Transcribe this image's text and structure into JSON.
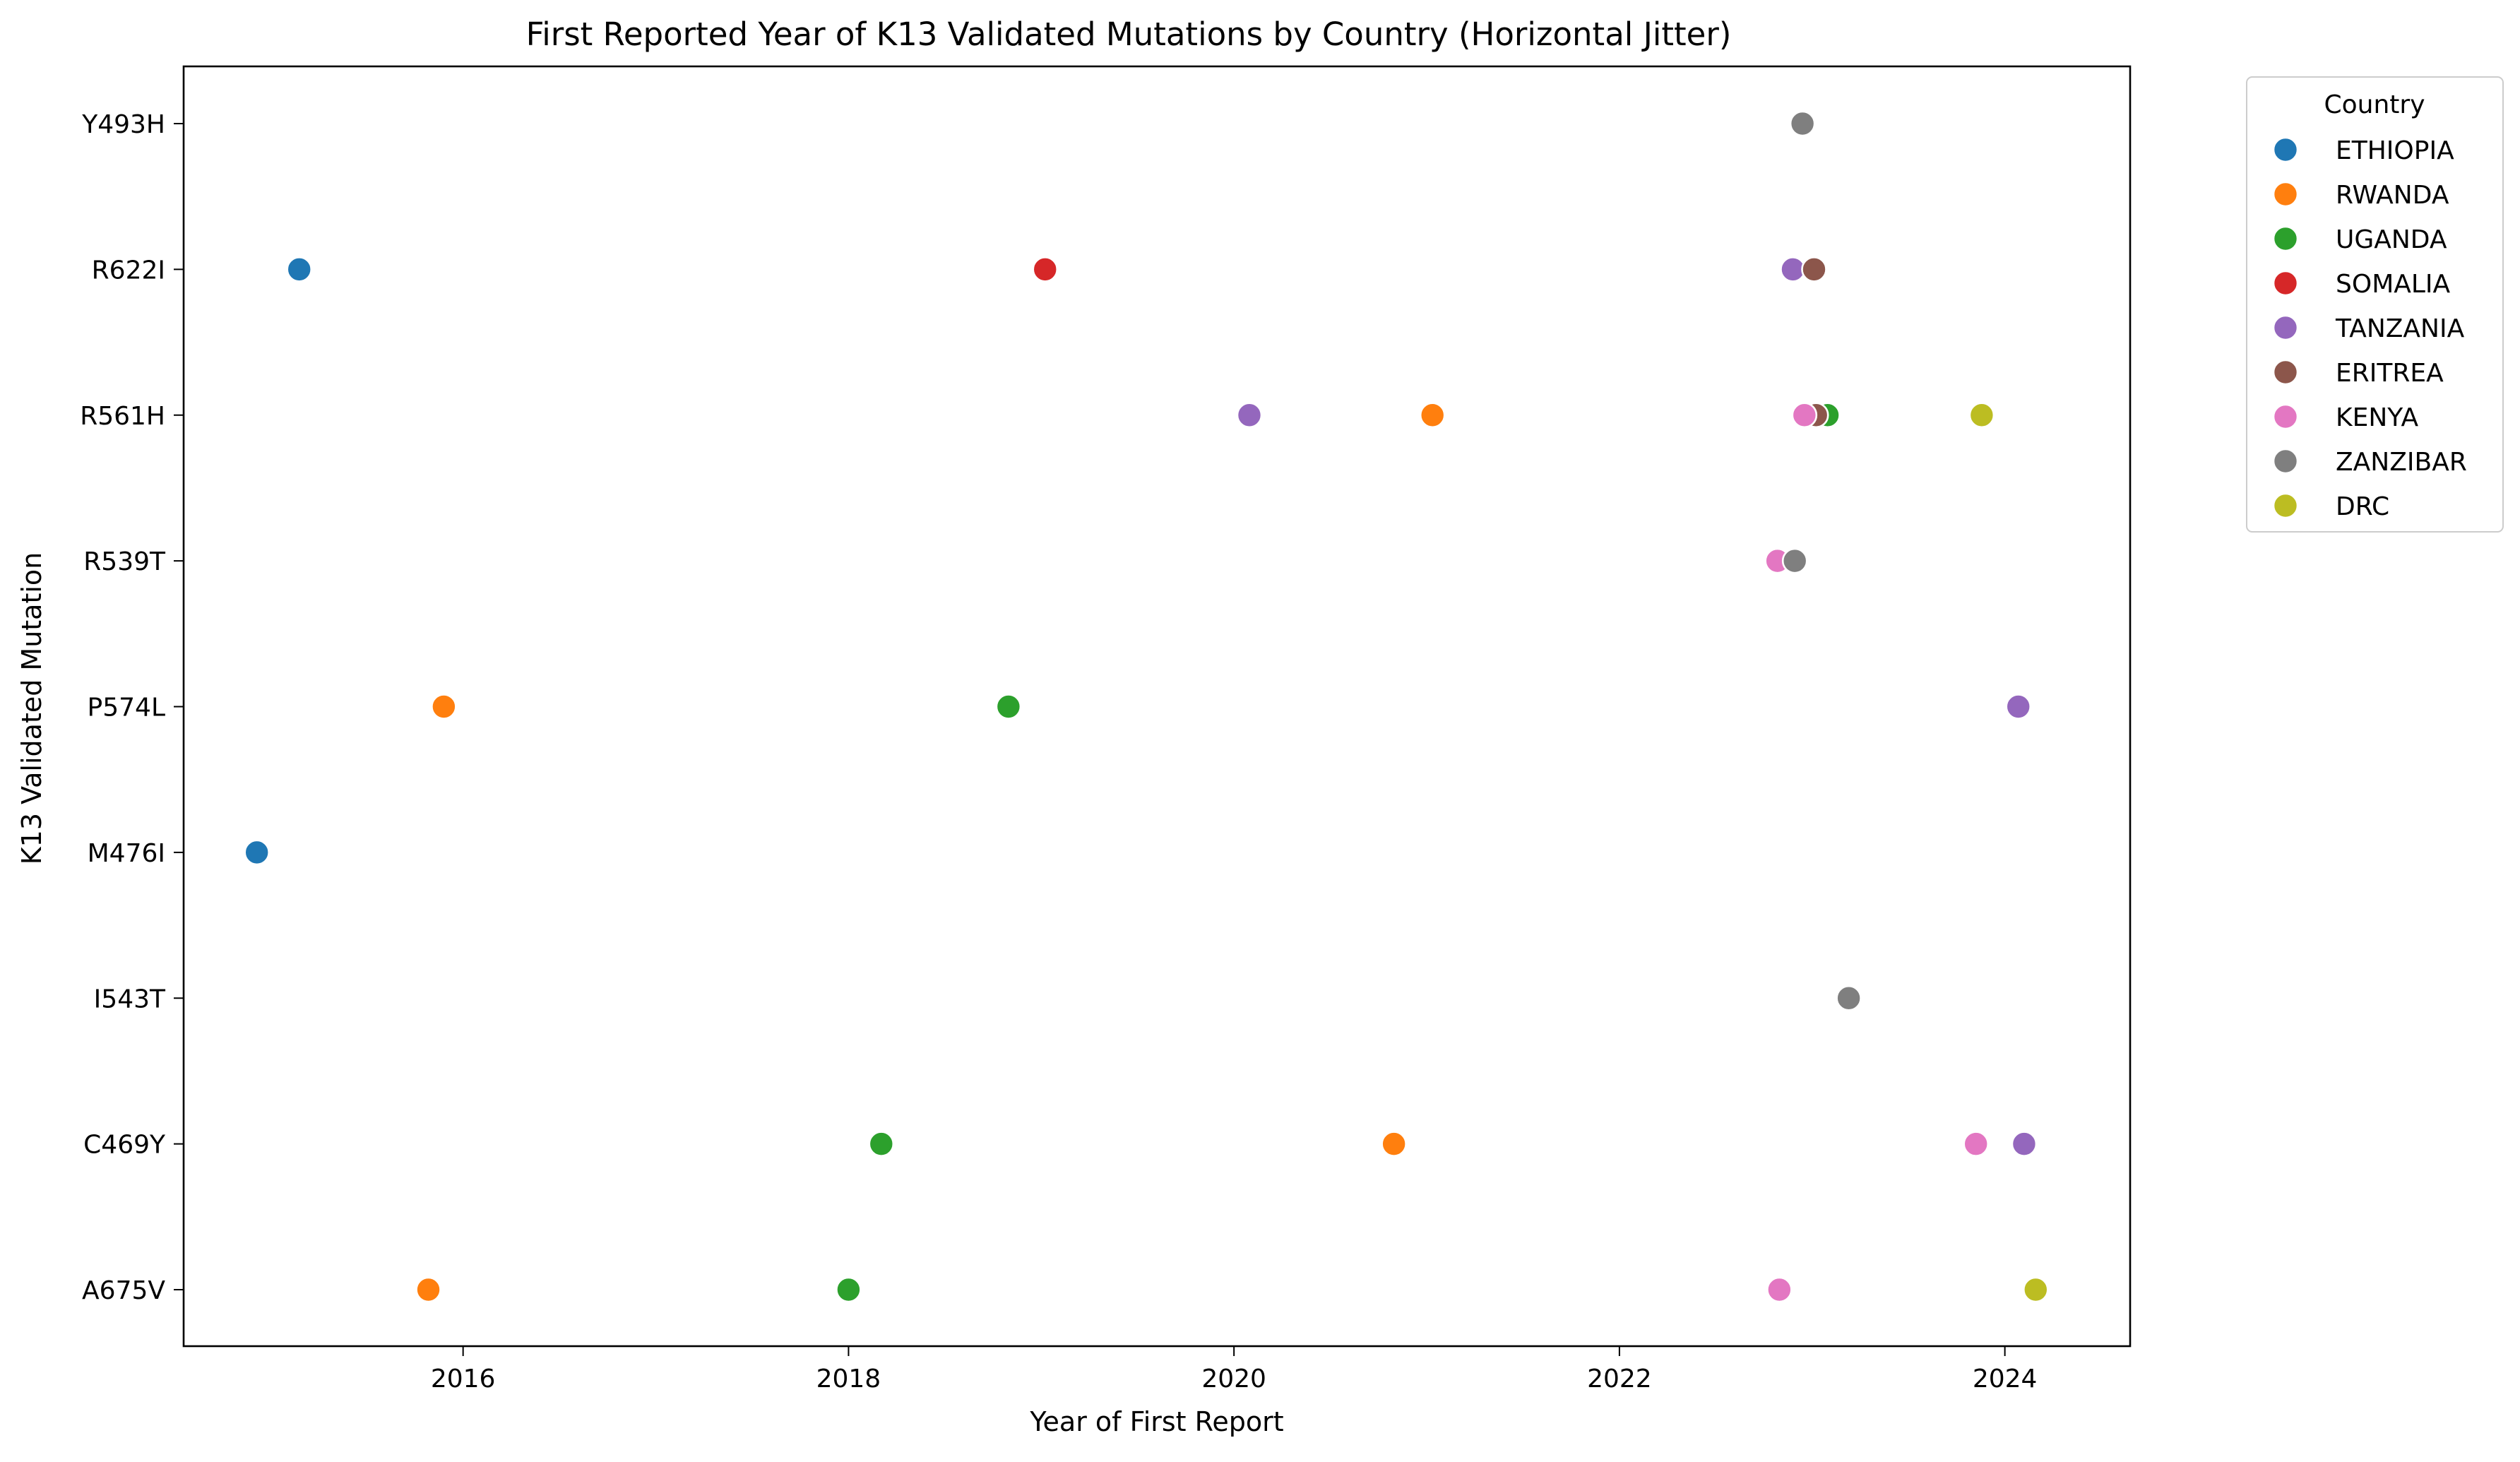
{
  "chart_data": {
    "type": "scatter",
    "title": "First Reported Year of K13 Validated Mutations by Country (Horizontal Jitter)",
    "xlabel": "Year of First Report",
    "ylabel": "K13 Validated Mutation",
    "xlim": [
      2014.55,
      2024.65
    ],
    "x_ticks": [
      2016,
      2018,
      2020,
      2022,
      2024
    ],
    "x_tick_labels": [
      "2016",
      "2018",
      "2020",
      "2022",
      "2024"
    ],
    "categories": [
      "Y493H",
      "R622I",
      "R561H",
      "R539T",
      "P574L",
      "M476I",
      "I543T",
      "C469Y",
      "A675V"
    ],
    "grid": false,
    "legend": {
      "title": "Country",
      "placement": "outside-right"
    },
    "series": [
      {
        "name": "ETHIOPIA",
        "color": "#1f77b4",
        "points": [
          {
            "y": "R622I",
            "x": 2015.15
          },
          {
            "y": "M476I",
            "x": 2014.93
          }
        ]
      },
      {
        "name": "RWANDA",
        "color": "#ff7f0e",
        "points": [
          {
            "y": "R561H",
            "x": 2021.03
          },
          {
            "y": "P574L",
            "x": 2015.9
          },
          {
            "y": "C469Y",
            "x": 2020.83
          },
          {
            "y": "A675V",
            "x": 2015.82
          }
        ]
      },
      {
        "name": "UGANDA",
        "color": "#2ca02c",
        "points": [
          {
            "y": "R561H",
            "x": 2023.08
          },
          {
            "y": "P574L",
            "x": 2018.83
          },
          {
            "y": "C469Y",
            "x": 2018.17
          },
          {
            "y": "A675V",
            "x": 2018.0
          }
        ]
      },
      {
        "name": "SOMALIA",
        "color": "#d62728",
        "points": [
          {
            "y": "R622I",
            "x": 2019.02
          }
        ]
      },
      {
        "name": "TANZANIA",
        "color": "#9467bd",
        "points": [
          {
            "y": "R622I",
            "x": 2022.9
          },
          {
            "y": "R561H",
            "x": 2020.08
          },
          {
            "y": "P574L",
            "x": 2024.07
          },
          {
            "y": "C469Y",
            "x": 2024.1
          }
        ]
      },
      {
        "name": "ERITREA",
        "color": "#8c564b",
        "points": [
          {
            "y": "R622I",
            "x": 2023.01
          },
          {
            "y": "R561H",
            "x": 2023.02
          }
        ]
      },
      {
        "name": "KENYA",
        "color": "#e377c2",
        "points": [
          {
            "y": "R561H",
            "x": 2022.96
          },
          {
            "y": "R539T",
            "x": 2022.82
          },
          {
            "y": "C469Y",
            "x": 2023.85
          },
          {
            "y": "A675V",
            "x": 2022.83
          }
        ]
      },
      {
        "name": "ZANZIBAR",
        "color": "#7f7f7f",
        "points": [
          {
            "y": "Y493H",
            "x": 2022.95
          },
          {
            "y": "R539T",
            "x": 2022.91
          },
          {
            "y": "I543T",
            "x": 2023.19
          }
        ]
      },
      {
        "name": "DRC",
        "color": "#bcbd22",
        "points": [
          {
            "y": "R561H",
            "x": 2023.88
          },
          {
            "y": "A675V",
            "x": 2024.16
          }
        ]
      }
    ]
  }
}
